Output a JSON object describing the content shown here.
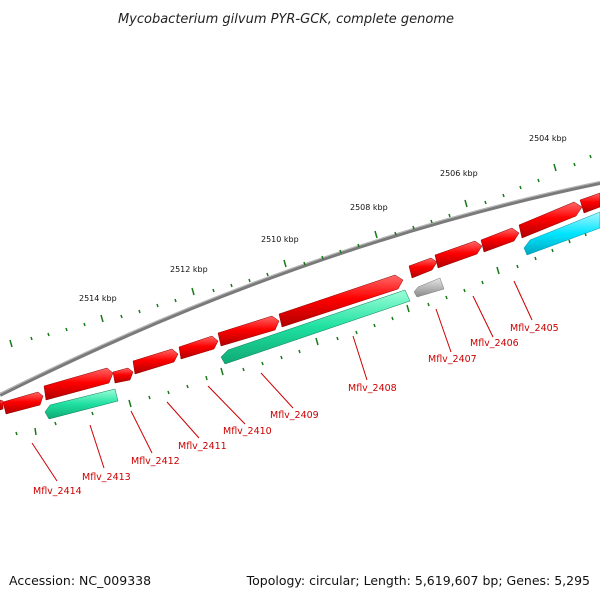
{
  "title": "Mycobacterium gilvum PYR-GCK, complete genome",
  "footer": {
    "accession": "Accession: NC_009338",
    "summary": "Topology: circular; Length: 5,619,607 bp; Genes: 5,295"
  },
  "kbp_labels": [
    "2504 kbp",
    "2506 kbp",
    "2508 kbp",
    "2510 kbp",
    "2512 kbp",
    "2514 kbp"
  ],
  "gene_labels": [
    "Mflv_2405",
    "Mflv_2406",
    "Mflv_2407",
    "Mflv_2408",
    "Mflv_2409",
    "Mflv_2410",
    "Mflv_2411",
    "Mflv_2412",
    "Mflv_2413",
    "Mflv_2414"
  ],
  "colors": {
    "backbone": "#808080",
    "forward_gene": "#ff0000",
    "reverse_gene": "#1ee0a0",
    "cyan_gene": "#00e5ff",
    "gray_gene": "#b8b8b8",
    "tick": "#1a7a1a",
    "label": "#cc0000"
  }
}
